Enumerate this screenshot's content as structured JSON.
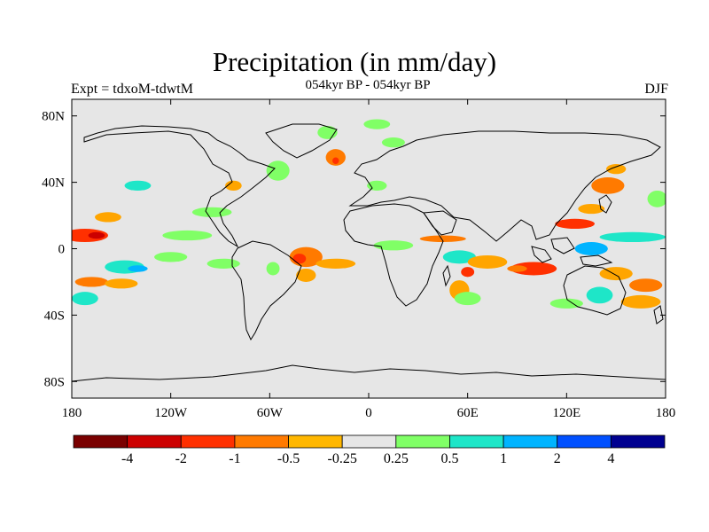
{
  "header": {
    "title": "Precipitation (in mm/day)",
    "subtitle": "054kyr BP - 054kyr BP",
    "left_label": "Expt = tdxoM-tdwtM",
    "right_label": "DJF"
  },
  "map": {
    "projection": "cylindrical-equidistant",
    "lon_range": [
      -180,
      180
    ],
    "lat_range": [
      -90,
      90
    ],
    "background_color": "#e6e6e6",
    "lat_ticks": [
      {
        "value": 80,
        "label": "80N"
      },
      {
        "value": 40,
        "label": "40N"
      },
      {
        "value": 0,
        "label": "0"
      },
      {
        "value": -40,
        "label": "40S"
      },
      {
        "value": -80,
        "label": "80S"
      }
    ],
    "lon_ticks": [
      {
        "value": -180,
        "label": "180"
      },
      {
        "value": -120,
        "label": "120W"
      },
      {
        "value": -60,
        "label": "60W"
      },
      {
        "value": 0,
        "label": "0"
      },
      {
        "value": 60,
        "label": "60E"
      },
      {
        "value": 120,
        "label": "120E"
      },
      {
        "value": 180,
        "label": "180"
      }
    ],
    "anomaly_regions": [
      {
        "lon": -172,
        "lat": 8,
        "rx": 14,
        "ry": 4,
        "color": "#ff3000"
      },
      {
        "lon": -165,
        "lat": 8,
        "rx": 5,
        "ry": 2,
        "color": "#cc0000"
      },
      {
        "lon": -158,
        "lat": 19,
        "rx": 8,
        "ry": 3,
        "color": "#ffa500"
      },
      {
        "lon": -120,
        "lat": -5,
        "rx": 10,
        "ry": 3,
        "color": "#80ff66"
      },
      {
        "lon": -148,
        "lat": -11,
        "rx": 12,
        "ry": 4,
        "color": "#1ee6c8"
      },
      {
        "lon": -140,
        "lat": -12,
        "rx": 6,
        "ry": 2,
        "color": "#00b4ff"
      },
      {
        "lon": -168,
        "lat": -20,
        "rx": 10,
        "ry": 3,
        "color": "#ff7a00"
      },
      {
        "lon": -150,
        "lat": -21,
        "rx": 10,
        "ry": 3,
        "color": "#ffa500"
      },
      {
        "lon": -172,
        "lat": -30,
        "rx": 8,
        "ry": 4,
        "color": "#1ee6c8"
      },
      {
        "lon": -140,
        "lat": 38,
        "rx": 8,
        "ry": 3,
        "color": "#1ee6c8"
      },
      {
        "lon": -95,
        "lat": 22,
        "rx": 12,
        "ry": 3,
        "color": "#80ff66"
      },
      {
        "lon": -110,
        "lat": 8,
        "rx": 15,
        "ry": 3,
        "color": "#80ff66"
      },
      {
        "lon": -88,
        "lat": -9,
        "rx": 10,
        "ry": 3,
        "color": "#80ff66"
      },
      {
        "lon": -55,
        "lat": 47,
        "rx": 7,
        "ry": 6,
        "color": "#80ff66"
      },
      {
        "lon": -82,
        "lat": 38,
        "rx": 5,
        "ry": 3,
        "color": "#ffa500"
      },
      {
        "lon": -20,
        "lat": 55,
        "rx": 6,
        "ry": 5,
        "color": "#ff7a00"
      },
      {
        "lon": -20,
        "lat": 53,
        "rx": 2,
        "ry": 2,
        "color": "#ff3000"
      },
      {
        "lon": 5,
        "lat": 38,
        "rx": 6,
        "ry": 3,
        "color": "#80ff66"
      },
      {
        "lon": 15,
        "lat": 64,
        "rx": 7,
        "ry": 3,
        "color": "#80ff66"
      },
      {
        "lon": -38,
        "lat": -5,
        "rx": 10,
        "ry": 6,
        "color": "#ff7a00"
      },
      {
        "lon": -42,
        "lat": -6,
        "rx": 4,
        "ry": 3,
        "color": "#ff3000"
      },
      {
        "lon": -38,
        "lat": -16,
        "rx": 6,
        "ry": 4,
        "color": "#ffa500"
      },
      {
        "lon": -58,
        "lat": -12,
        "rx": 4,
        "ry": 4,
        "color": "#80ff66"
      },
      {
        "lon": -20,
        "lat": -9,
        "rx": 12,
        "ry": 3,
        "color": "#ffa500"
      },
      {
        "lon": 15,
        "lat": 2,
        "rx": 12,
        "ry": 3,
        "color": "#80ff66"
      },
      {
        "lon": 55,
        "lat": -5,
        "rx": 10,
        "ry": 4,
        "color": "#1ee6c8"
      },
      {
        "lon": 45,
        "lat": 6,
        "rx": 14,
        "ry": 2,
        "color": "#ff7a00"
      },
      {
        "lon": 72,
        "lat": -8,
        "rx": 12,
        "ry": 4,
        "color": "#ffa500"
      },
      {
        "lon": 100,
        "lat": -12,
        "rx": 14,
        "ry": 4,
        "color": "#ff3000"
      },
      {
        "lon": 90,
        "lat": -12,
        "rx": 6,
        "ry": 2,
        "color": "#ff7a00"
      },
      {
        "lon": 60,
        "lat": -14,
        "rx": 4,
        "ry": 3,
        "color": "#ff3000"
      },
      {
        "lon": 55,
        "lat": -25,
        "rx": 6,
        "ry": 6,
        "color": "#ffa500"
      },
      {
        "lon": 60,
        "lat": -30,
        "rx": 8,
        "ry": 4,
        "color": "#80ff66"
      },
      {
        "lon": 135,
        "lat": 0,
        "rx": 10,
        "ry": 4,
        "color": "#00b4ff"
      },
      {
        "lon": 125,
        "lat": 15,
        "rx": 12,
        "ry": 3,
        "color": "#ff3000"
      },
      {
        "lon": 135,
        "lat": 24,
        "rx": 8,
        "ry": 3,
        "color": "#ffa500"
      },
      {
        "lon": 145,
        "lat": 38,
        "rx": 10,
        "ry": 5,
        "color": "#ff7a00"
      },
      {
        "lon": 150,
        "lat": 48,
        "rx": 6,
        "ry": 3,
        "color": "#ffa500"
      },
      {
        "lon": 160,
        "lat": 7,
        "rx": 20,
        "ry": 3,
        "color": "#1ee6c8"
      },
      {
        "lon": 175,
        "lat": 30,
        "rx": 6,
        "ry": 5,
        "color": "#80ff66"
      },
      {
        "lon": 150,
        "lat": -15,
        "rx": 10,
        "ry": 4,
        "color": "#ffa500"
      },
      {
        "lon": 168,
        "lat": -22,
        "rx": 10,
        "ry": 4,
        "color": "#ff7a00"
      },
      {
        "lon": 140,
        "lat": -28,
        "rx": 8,
        "ry": 5,
        "color": "#1ee6c8"
      },
      {
        "lon": 165,
        "lat": -32,
        "rx": 12,
        "ry": 4,
        "color": "#ffa500"
      },
      {
        "lon": 120,
        "lat": -33,
        "rx": 10,
        "ry": 3,
        "color": "#80ff66"
      },
      {
        "lon": -25,
        "lat": 70,
        "rx": 6,
        "ry": 4,
        "color": "#80ff66"
      },
      {
        "lon": 5,
        "lat": 75,
        "rx": 8,
        "ry": 3,
        "color": "#80ff66"
      }
    ]
  },
  "legend": {
    "bins": [
      {
        "color": "#7a0000"
      },
      {
        "color": "#cc0000"
      },
      {
        "color": "#ff3000"
      },
      {
        "color": "#ff7a00"
      },
      {
        "color": "#ffb700"
      },
      {
        "color": "#e6e6e6"
      },
      {
        "color": "#80ff66"
      },
      {
        "color": "#1ee6c8"
      },
      {
        "color": "#00b4ff"
      },
      {
        "color": "#0050ff"
      },
      {
        "color": "#000090"
      }
    ],
    "labels": [
      "-4",
      "-2",
      "-1",
      "-0.5",
      "-0.25",
      "0.25",
      "0.5",
      "1",
      "2",
      "4"
    ]
  }
}
